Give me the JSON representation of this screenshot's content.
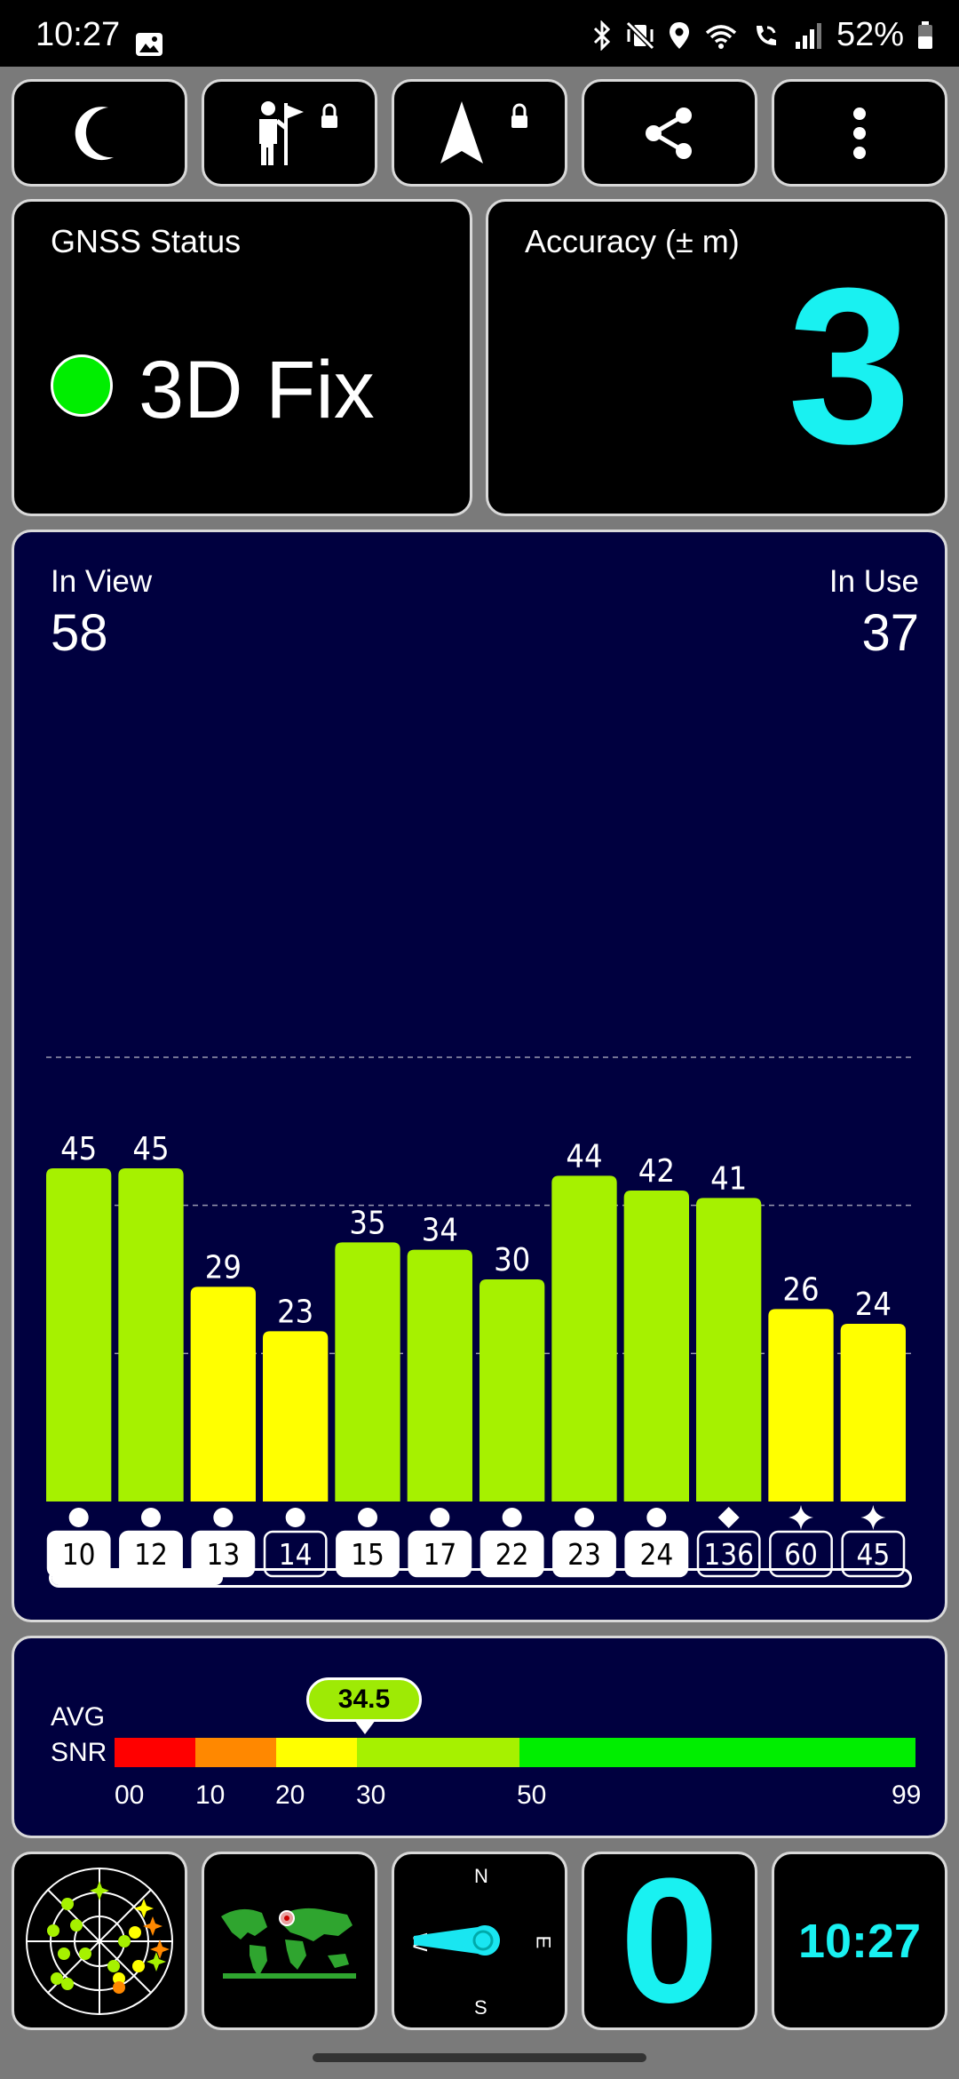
{
  "status_bar": {
    "time": "10:27",
    "battery_text": "52%",
    "icons": [
      "image-icon",
      "bluetooth-icon",
      "vibrate-mute-icon",
      "location-icon",
      "wifi-icon",
      "wifi-calling-icon",
      "signal-icon",
      "battery-icon"
    ]
  },
  "toolbar": {
    "buttons": [
      "moon-icon",
      "person-flag-icon",
      "navigation-arrow-icon",
      "share-icon",
      "more-vert-icon"
    ],
    "locked": [
      false,
      true,
      true,
      false,
      false
    ]
  },
  "gnss": {
    "title": "GNSS Status",
    "status": "3D Fix",
    "dot_color": "#00ee00"
  },
  "accuracy": {
    "title": "Accuracy (± m)",
    "value": "3"
  },
  "satellites": {
    "in_view_label": "In View",
    "in_view": "58",
    "in_use_label": "In Use",
    "in_use": "37",
    "scroll_position_fraction": 0.2
  },
  "chart_data": {
    "type": "bar",
    "categories": [
      "10",
      "12",
      "13",
      "14",
      "15",
      "17",
      "22",
      "23",
      "24",
      "136",
      "60",
      "45"
    ],
    "values": [
      45,
      45,
      29,
      23,
      35,
      34,
      30,
      44,
      42,
      41,
      26,
      24
    ],
    "markers": [
      "circle",
      "circle",
      "circle",
      "circle",
      "circle",
      "circle",
      "circle",
      "circle",
      "circle",
      "diamond",
      "star",
      "star"
    ],
    "used_in_fix": [
      true,
      true,
      true,
      false,
      true,
      true,
      true,
      true,
      true,
      false,
      false,
      false
    ],
    "colors": [
      "#a6f100",
      "#a6f100",
      "#ffff00",
      "#ffff00",
      "#a6f100",
      "#a6f100",
      "#a6f100",
      "#a6f100",
      "#a6f100",
      "#a6f100",
      "#ffff00",
      "#ffff00"
    ],
    "ylim": [
      0,
      60
    ],
    "gridlines": [
      20,
      40,
      60
    ],
    "grid": true
  },
  "snr": {
    "label_1": "AVG",
    "label_2": "SNR",
    "avg": "34.5",
    "scale": [
      {
        "from": 0,
        "to": 10,
        "color": "#ff0000"
      },
      {
        "from": 10,
        "to": 20,
        "color": "#ff8800"
      },
      {
        "from": 20,
        "to": 30,
        "color": "#ffff00"
      },
      {
        "from": 30,
        "to": 50,
        "color": "#a6f100"
      },
      {
        "from": 50,
        "to": 99,
        "color": "#00ee00"
      }
    ],
    "ticks": [
      "00",
      "10",
      "20",
      "30",
      "50",
      "99"
    ]
  },
  "tiles": {
    "skyplot": "skyplot-icon",
    "worldmap": "world-map-icon",
    "compass": {
      "n": "N",
      "e": "E",
      "s": "S",
      "w": "W"
    },
    "speed": "0",
    "clock": "10:27"
  }
}
